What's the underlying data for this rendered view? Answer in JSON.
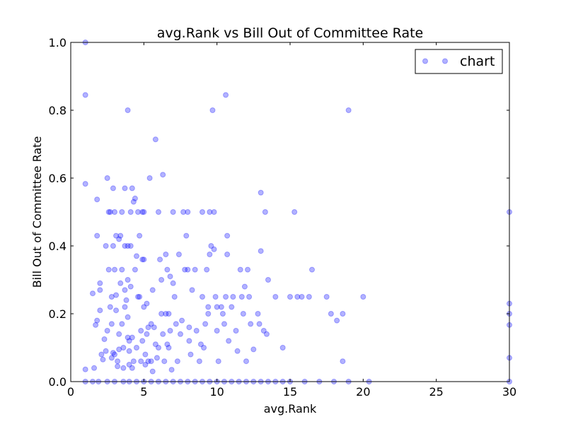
{
  "chart_data": {
    "type": "scatter",
    "title": "avg.Rank vs Bill Out of Committee Rate",
    "xlabel": "avg.Rank",
    "ylabel": "Bill Out of Committee Rate",
    "xlim": [
      0,
      30
    ],
    "ylim": [
      0,
      1.0
    ],
    "xticks": [
      "0",
      "5",
      "10",
      "15",
      "20",
      "25",
      "30"
    ],
    "yticks": [
      "0.0",
      "0.2",
      "0.4",
      "0.6",
      "0.8",
      "1.0"
    ],
    "grid": false,
    "legend_position": "top-right",
    "point_color": "#0000ff",
    "series": [
      {
        "name": "chart",
        "points": [
          [
            1.0,
            1.0
          ],
          [
            1.0,
            0.845
          ],
          [
            1.0,
            0.583
          ],
          [
            1.0,
            0.036
          ],
          [
            1.0,
            0.0
          ],
          [
            1.5,
            0.26
          ],
          [
            1.6,
            0.04
          ],
          [
            1.7,
            0.167
          ],
          [
            1.8,
            0.537
          ],
          [
            1.8,
            0.43
          ],
          [
            1.8,
            0.18
          ],
          [
            1.9,
            0.0
          ],
          [
            2.0,
            0.29
          ],
          [
            2.0,
            0.27
          ],
          [
            2.0,
            0.21
          ],
          [
            2.1,
            0.08
          ],
          [
            2.2,
            0.065
          ],
          [
            2.3,
            0.125
          ],
          [
            2.4,
            0.09
          ],
          [
            2.4,
            0.4
          ],
          [
            2.5,
            0.6
          ],
          [
            2.5,
            0.15
          ],
          [
            2.6,
            0.33
          ],
          [
            2.6,
            0.5
          ],
          [
            2.7,
            0.5
          ],
          [
            2.7,
            0.22
          ],
          [
            2.8,
            0.25
          ],
          [
            2.8,
            0.07
          ],
          [
            2.8,
            0.17
          ],
          [
            2.9,
            0.57
          ],
          [
            2.9,
            0.4
          ],
          [
            2.9,
            0.085
          ],
          [
            3.0,
            0.08
          ],
          [
            3.0,
            0.33
          ],
          [
            3.0,
            0.5
          ],
          [
            3.1,
            0.43
          ],
          [
            3.1,
            0.255
          ],
          [
            3.1,
            0.21
          ],
          [
            3.2,
            0.06
          ],
          [
            3.2,
            0.045
          ],
          [
            3.3,
            0.14
          ],
          [
            3.3,
            0.095
          ],
          [
            3.3,
            0.42
          ],
          [
            3.4,
            0.43
          ],
          [
            3.4,
            0.29
          ],
          [
            3.5,
            0.5
          ],
          [
            3.5,
            0.33
          ],
          [
            3.5,
            0.17
          ],
          [
            3.6,
            0.1
          ],
          [
            3.6,
            0.0
          ],
          [
            3.6,
            0.04
          ],
          [
            3.7,
            0.57
          ],
          [
            3.7,
            0.4
          ],
          [
            3.7,
            0.22
          ],
          [
            3.7,
            0.27
          ],
          [
            3.8,
            0.24
          ],
          [
            3.9,
            0.8
          ],
          [
            3.9,
            0.4
          ],
          [
            3.9,
            0.3
          ],
          [
            3.9,
            0.19
          ],
          [
            3.9,
            0.13
          ],
          [
            4.0,
            0.09
          ],
          [
            4.0,
            0.05
          ],
          [
            4.0,
            0.12
          ],
          [
            4.1,
            0.5
          ],
          [
            4.1,
            0.4
          ],
          [
            4.1,
            0.28
          ],
          [
            4.2,
            0.57
          ],
          [
            4.2,
            0.13
          ],
          [
            4.2,
            0.04
          ],
          [
            4.3,
            0.53
          ],
          [
            4.3,
            0.06
          ],
          [
            4.4,
            0.54
          ],
          [
            4.4,
            0.33
          ],
          [
            4.5,
            0.37
          ],
          [
            4.5,
            0.1
          ],
          [
            4.6,
            0.25
          ],
          [
            4.6,
            0.5
          ],
          [
            4.7,
            0.43
          ],
          [
            4.7,
            0.25
          ],
          [
            4.8,
            0.06
          ],
          [
            4.8,
            0.15
          ],
          [
            4.9,
            0.5
          ],
          [
            4.9,
            0.36
          ],
          [
            4.9,
            0.12
          ],
          [
            5.0,
            0.36
          ],
          [
            5.0,
            0.22
          ],
          [
            5.0,
            0.5
          ],
          [
            5.1,
            0.08
          ],
          [
            5.1,
            0.05
          ],
          [
            5.2,
            0.23
          ],
          [
            5.2,
            0.14
          ],
          [
            5.3,
            0.06
          ],
          [
            5.3,
            0.16
          ],
          [
            5.4,
            0.6
          ],
          [
            5.5,
            0.17
          ],
          [
            5.5,
            0.06
          ],
          [
            5.6,
            0.03
          ],
          [
            5.6,
            0.27
          ],
          [
            5.7,
            0.16
          ],
          [
            5.8,
            0.714
          ],
          [
            5.8,
            0.11
          ],
          [
            5.9,
            0.07
          ],
          [
            6.0,
            0.1
          ],
          [
            6.0,
            0.5
          ],
          [
            6.1,
            0.36
          ],
          [
            6.2,
            0.2
          ],
          [
            6.2,
            0.3
          ],
          [
            6.3,
            0.61
          ],
          [
            6.3,
            0.14
          ],
          [
            6.4,
            0.06
          ],
          [
            6.5,
            0.375
          ],
          [
            6.5,
            0.2
          ],
          [
            6.6,
            0.33
          ],
          [
            6.6,
            0.11
          ],
          [
            6.7,
            0.1
          ],
          [
            6.7,
            0.2
          ],
          [
            6.8,
            0.31
          ],
          [
            6.8,
            0.15
          ],
          [
            6.9,
            0.035
          ],
          [
            7.0,
            0.5
          ],
          [
            7.0,
            0.29
          ],
          [
            7.1,
            0.25
          ],
          [
            7.2,
            0.17
          ],
          [
            7.3,
            0.06
          ],
          [
            7.4,
            0.375
          ],
          [
            7.5,
            0.14
          ],
          [
            7.6,
            0.18
          ],
          [
            7.7,
            0.5
          ],
          [
            7.8,
            0.33
          ],
          [
            7.9,
            0.43
          ],
          [
            8.0,
            0.5
          ],
          [
            8.0,
            0.33
          ],
          [
            8.1,
            0.16
          ],
          [
            8.1,
            0.12
          ],
          [
            8.2,
            0.08
          ],
          [
            8.3,
            0.27
          ],
          [
            8.5,
            0.33
          ],
          [
            8.6,
            0.15
          ],
          [
            8.8,
            0.06
          ],
          [
            8.9,
            0.11
          ],
          [
            9.0,
            0.5
          ],
          [
            9.0,
            0.25
          ],
          [
            9.1,
            0.1
          ],
          [
            9.2,
            0.17
          ],
          [
            9.3,
            0.33
          ],
          [
            9.4,
            0.2
          ],
          [
            9.4,
            0.22
          ],
          [
            9.5,
            0.375
          ],
          [
            9.5,
            0.5
          ],
          [
            9.6,
            0.4
          ],
          [
            9.7,
            0.8
          ],
          [
            9.8,
            0.39
          ],
          [
            9.8,
            0.5
          ],
          [
            9.9,
            0.25
          ],
          [
            10.0,
            0.15
          ],
          [
            10.0,
            0.22
          ],
          [
            10.1,
            0.06
          ],
          [
            10.3,
            0.22
          ],
          [
            10.4,
            0.2
          ],
          [
            10.5,
            0.17
          ],
          [
            10.6,
            0.845
          ],
          [
            10.6,
            0.25
          ],
          [
            10.7,
            0.43
          ],
          [
            10.7,
            0.375
          ],
          [
            10.8,
            0.12
          ],
          [
            11.0,
            0.22
          ],
          [
            11.1,
            0.25
          ],
          [
            11.3,
            0.15
          ],
          [
            11.4,
            0.09
          ],
          [
            11.6,
            0.33
          ],
          [
            11.7,
            0.25
          ],
          [
            11.8,
            0.2
          ],
          [
            11.9,
            0.28
          ],
          [
            12.0,
            0.06
          ],
          [
            12.1,
            0.33
          ],
          [
            12.2,
            0.25
          ],
          [
            12.3,
            0.17
          ],
          [
            12.5,
            0.095
          ],
          [
            12.8,
            0.2
          ],
          [
            12.9,
            0.17
          ],
          [
            13.0,
            0.557
          ],
          [
            13.0,
            0.385
          ],
          [
            13.2,
            0.15
          ],
          [
            13.3,
            0.5
          ],
          [
            13.4,
            0.14
          ],
          [
            13.5,
            0.3
          ],
          [
            14.0,
            0.25
          ],
          [
            14.5,
            0.1
          ],
          [
            15.0,
            0.25
          ],
          [
            15.3,
            0.5
          ],
          [
            15.5,
            0.25
          ],
          [
            15.8,
            0.25
          ],
          [
            16.0,
            0.0
          ],
          [
            16.3,
            0.25
          ],
          [
            16.5,
            0.33
          ],
          [
            17.5,
            0.25
          ],
          [
            17.8,
            0.2
          ],
          [
            18.2,
            0.18
          ],
          [
            18.6,
            0.2
          ],
          [
            18.6,
            0.06
          ],
          [
            19.0,
            0.8
          ],
          [
            20.0,
            0.25
          ],
          [
            20.4,
            0.0
          ],
          [
            30.0,
            0.5
          ],
          [
            30.0,
            0.23
          ],
          [
            30.0,
            0.2
          ],
          [
            30.0,
            0.167
          ],
          [
            30.0,
            0.07
          ],
          [
            30.0,
            0.0
          ],
          [
            1.5,
            0.0
          ],
          [
            2.5,
            0.0
          ],
          [
            3.0,
            0.0
          ],
          [
            4.0,
            0.0
          ],
          [
            4.5,
            0.0
          ],
          [
            5.0,
            0.0
          ],
          [
            5.5,
            0.0
          ],
          [
            6.0,
            0.0
          ],
          [
            6.5,
            0.0
          ],
          [
            7.0,
            0.0
          ],
          [
            7.5,
            0.0
          ],
          [
            8.0,
            0.0
          ],
          [
            8.5,
            0.0
          ],
          [
            9.0,
            0.0
          ],
          [
            9.5,
            0.0
          ],
          [
            10.0,
            0.0
          ],
          [
            10.5,
            0.0
          ],
          [
            11.0,
            0.0
          ],
          [
            11.5,
            0.0
          ],
          [
            12.0,
            0.0
          ],
          [
            12.5,
            0.0
          ],
          [
            13.0,
            0.0
          ],
          [
            13.5,
            0.0
          ],
          [
            14.0,
            0.0
          ],
          [
            14.5,
            0.0
          ],
          [
            15.0,
            0.0
          ],
          [
            17.0,
            0.0
          ],
          [
            18.0,
            0.0
          ],
          [
            19.0,
            0.0
          ]
        ]
      }
    ]
  }
}
